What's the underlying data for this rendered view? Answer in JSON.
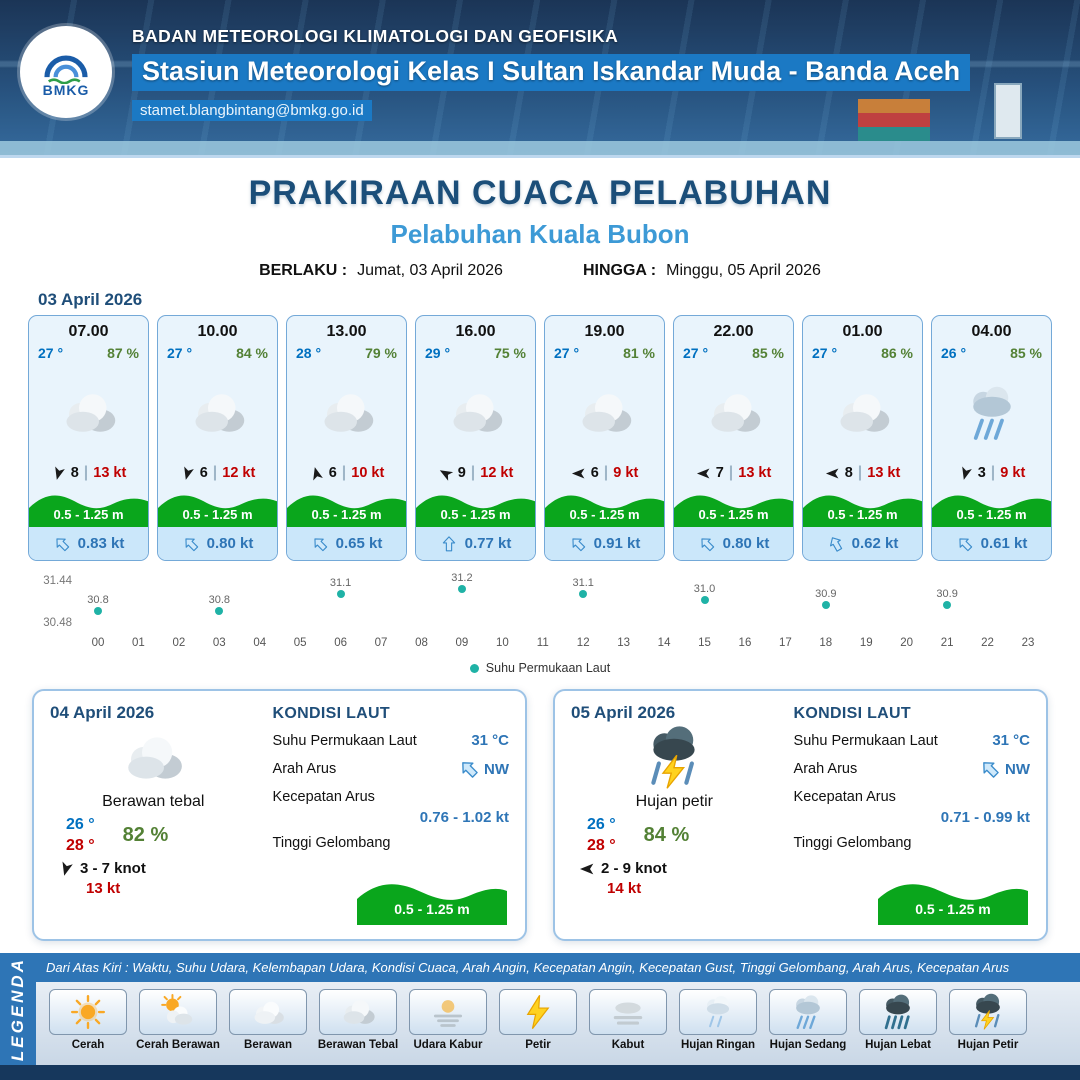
{
  "header": {
    "logo_text": "BMKG",
    "org": "BADAN METEOROLOGI KLIMATOLOGI DAN GEOFISIKA",
    "station": "Stasiun Meteorologi Kelas I Sultan Iskandar Muda - Banda Aceh",
    "email": "stamet.blangbintang@bmkg.go.id"
  },
  "title": {
    "main": "PRAKIRAAN CUACA PELABUHAN",
    "subtitle": "Pelabuhan Kuala Bubon",
    "berlaku_label": "BERLAKU :",
    "berlaku_value": "Jumat, 03 April 2026",
    "hingga_label": "HINGGA :",
    "hingga_value": "Minggu, 05 April 2026"
  },
  "day1": {
    "date": "03 April 2026",
    "cards": [
      {
        "time": "07.00",
        "temp": "27 °",
        "humidity": "87 %",
        "icon": "berawan-tebal",
        "wind_deg": 195,
        "wind": "8",
        "gust": "13 kt",
        "wave": "0.5 - 1.25 m",
        "current_deg": -45,
        "current": "0.83 kt"
      },
      {
        "time": "10.00",
        "temp": "27 °",
        "humidity": "84 %",
        "icon": "berawan-tebal",
        "wind_deg": 195,
        "wind": "6",
        "gust": "12 kt",
        "wave": "0.5 - 1.25 m",
        "current_deg": -45,
        "current": "0.80 kt"
      },
      {
        "time": "13.00",
        "temp": "28 °",
        "humidity": "79 %",
        "icon": "berawan-tebal",
        "wind_deg": -15,
        "wind": "6",
        "gust": "10 kt",
        "wave": "0.5 - 1.25 m",
        "current_deg": -45,
        "current": "0.65 kt"
      },
      {
        "time": "16.00",
        "temp": "29 °",
        "humidity": "75 %",
        "icon": "berawan-tebal",
        "wind_deg": -60,
        "wind": "9",
        "gust": "12 kt",
        "wave": "0.5 - 1.25 m",
        "current_deg": 0,
        "current": "0.77 kt"
      },
      {
        "time": "19.00",
        "temp": "27 °",
        "humidity": "81 %",
        "icon": "berawan-tebal",
        "wind_deg": -90,
        "wind": "6",
        "gust": "9 kt",
        "wave": "0.5 - 1.25 m",
        "current_deg": -45,
        "current": "0.91 kt"
      },
      {
        "time": "22.00",
        "temp": "27 °",
        "humidity": "85 %",
        "icon": "berawan-tebal",
        "wind_deg": -90,
        "wind": "7",
        "gust": "13 kt",
        "wave": "0.5 - 1.25 m",
        "current_deg": -45,
        "current": "0.80 kt"
      },
      {
        "time": "01.00",
        "temp": "27 °",
        "humidity": "86 %",
        "icon": "berawan-tebal",
        "wind_deg": -90,
        "wind": "8",
        "gust": "13 kt",
        "wave": "0.5 - 1.25 m",
        "current_deg": -30,
        "current": "0.62 kt"
      },
      {
        "time": "04.00",
        "temp": "26 °",
        "humidity": "85 %",
        "icon": "hujan-sedang",
        "wind_deg": 195,
        "wind": "3",
        "gust": "9 kt",
        "wave": "0.5 - 1.25 m",
        "current_deg": -45,
        "current": "0.61 kt"
      }
    ]
  },
  "chart_data": {
    "type": "scatter",
    "series_name": "Suhu Permukaan Laut",
    "x": [
      0,
      3,
      6,
      9,
      12,
      15,
      18,
      21
    ],
    "values": [
      30.8,
      30.8,
      31.1,
      31.2,
      31.1,
      31.0,
      30.9,
      30.9
    ],
    "labels": [
      "30.8",
      "30.8",
      "31.1",
      "31.2",
      "31.1",
      "31.0",
      "30.9",
      "30.9"
    ],
    "x_ticks": [
      "00",
      "01",
      "02",
      "03",
      "04",
      "05",
      "06",
      "07",
      "08",
      "09",
      "10",
      "11",
      "12",
      "13",
      "14",
      "15",
      "16",
      "17",
      "18",
      "19",
      "20",
      "21",
      "22",
      "23"
    ],
    "ylim": [
      30.48,
      31.44
    ],
    "y_max_label": "31.44",
    "y_min_label": "30.48",
    "xlabel": "",
    "ylabel": "",
    "grid": false,
    "legend_position": "bottom",
    "point_color": "#1fb2a6"
  },
  "day2": {
    "date": "04 April 2026",
    "icon": "berawan-tebal",
    "condition": "Berawan tebal",
    "temp_min": "26 °",
    "temp_max": "28 °",
    "humidity": "82 %",
    "wind_deg": 195,
    "wind": "3 - 7 knot",
    "gust": "13 kt",
    "sea": {
      "title": "KONDISI LAUT",
      "sst_label": "Suhu Permukaan Laut",
      "sst_value": "31 °C",
      "dir_label": "Arah Arus",
      "dir_value": "NW",
      "dir_deg": -45,
      "speed_label": "Kecepatan Arus",
      "speed_value": "0.76 - 1.02 kt",
      "wave_label": "Tinggi Gelombang",
      "wave_value": "0.5 - 1.25 m"
    }
  },
  "day3": {
    "date": "05 April 2026",
    "icon": "hujan-petir",
    "condition": "Hujan petir",
    "temp_min": "26 °",
    "temp_max": "28 °",
    "humidity": "84 %",
    "wind_deg": -90,
    "wind": "2 - 9 knot",
    "gust": "14 kt",
    "sea": {
      "title": "KONDISI LAUT",
      "sst_label": "Suhu Permukaan Laut",
      "sst_value": "31 °C",
      "dir_label": "Arah Arus",
      "dir_value": "NW",
      "dir_deg": -45,
      "speed_label": "Kecepatan Arus",
      "speed_value": "0.71 - 0.99 kt",
      "wave_label": "Tinggi Gelombang",
      "wave_value": "0.5 - 1.25 m"
    }
  },
  "legend": {
    "bar_label": "LEGENDA",
    "description": "Dari Atas Kiri : Waktu, Suhu Udara, Kelembapan Udara, Kondisi Cuaca, Arah Angin, Kecepatan Angin, Kecepatan Gust, Tinggi Gelombang, Arah Arus, Kecepatan Arus",
    "items": [
      {
        "label": "Cerah",
        "icon": "cerah"
      },
      {
        "label": "Cerah Berawan",
        "icon": "cerah-berawan"
      },
      {
        "label": "Berawan",
        "icon": "berawan"
      },
      {
        "label": "Berawan Tebal",
        "icon": "berawan-tebal"
      },
      {
        "label": "Udara Kabur",
        "icon": "udara-kabur"
      },
      {
        "label": "Petir",
        "icon": "petir"
      },
      {
        "label": "Kabut",
        "icon": "kabut"
      },
      {
        "label": "Hujan Ringan",
        "icon": "hujan-ringan"
      },
      {
        "label": "Hujan Sedang",
        "icon": "hujan-sedang"
      },
      {
        "label": "Hujan Lebat",
        "icon": "hujan-lebat"
      },
      {
        "label": "Hujan Petir",
        "icon": "hujan-petir"
      }
    ]
  },
  "colors": {
    "accent_blue": "#2e75b6",
    "deep_blue": "#1f4e79",
    "temp_blue": "#0070c0",
    "humidity_green": "#538135",
    "gust_red": "#c00000",
    "wave_green": "#0aa61c",
    "point_teal": "#1fb2a6"
  }
}
